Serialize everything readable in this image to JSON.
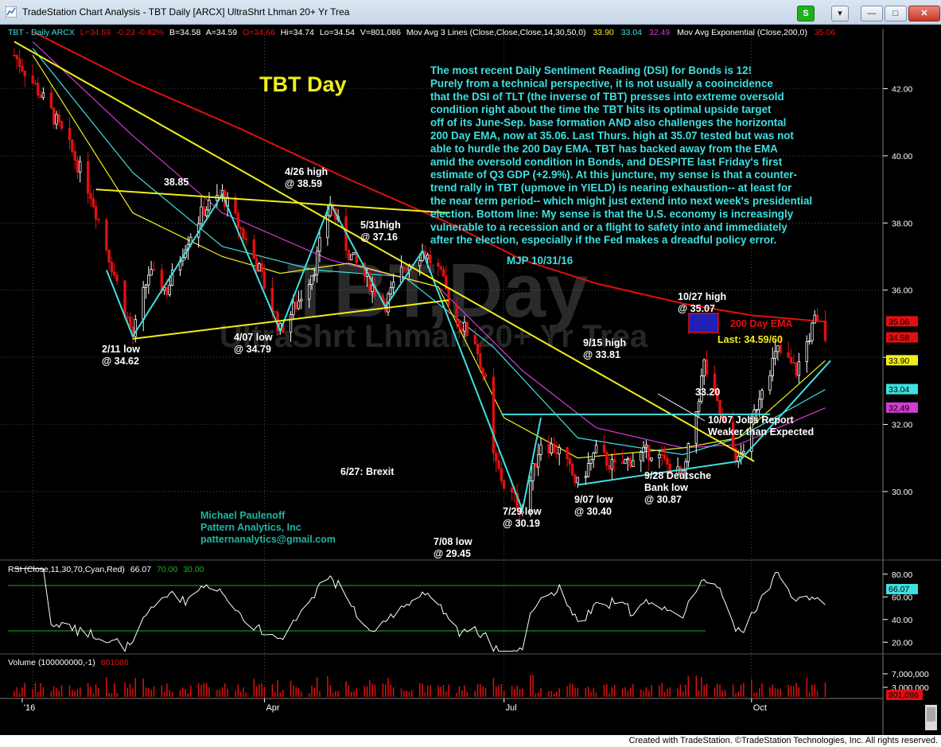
{
  "window": {
    "title": "TradeStation Chart Analysis - TBT Daily [ARCX] UltraShrt Lhman 20+ Yr Trea",
    "buttons": {
      "s_label": "S",
      "menu_label": "▾",
      "minimize": "—",
      "maximize": "□",
      "close": "✕"
    }
  },
  "status": {
    "credit": "Created with TradeStation. ©TradeStation Technologies, Inc. All rights reserved."
  },
  "colors": {
    "bg": "#000000",
    "cyan": "#3fe0e0",
    "yellow": "#f0ee1a",
    "red": "#e01010",
    "magenta": "#d23cd2",
    "white": "#ffffff",
    "up_bar": "#ffffff",
    "down_bar": "#e01010",
    "grid": "#7a7a7a"
  },
  "header": {
    "symbol": "TBT - Daily  ARCX",
    "last": "L=34.59",
    "change": "-0.23  -0.82%",
    "bid": "B=34.58",
    "ask": "A=34.59",
    "open": "O=34.66",
    "hi": "Hi=34.74",
    "lo": "Lo=34.54",
    "volume": "V=801,086",
    "mav_label": "Mov Avg 3 Lines (Close,Close,Close,14,30,50,0)",
    "mav_v1": "33.90",
    "mav_v2": "33.04",
    "mav_v3": "32.49",
    "ema_label": "Mov Avg Exponential (Close,200,0)",
    "ema_v": "35.06"
  },
  "watermark": {
    "line1": "TBT,Day",
    "line2": "UltraShrt Lhman 20+ Yr Trea"
  },
  "annotations": {
    "title": "TBT Day",
    "commentary": [
      "The most recent Daily Sentiment Reading (DSI) for Bonds is 12!",
      "Purely from a technical perspective, it is not usually a cooincidence",
      "that the DSI of TLT (the inverse of TBT) presses into extreme oversold",
      "condition right about the time the TBT hits its optimal upside target",
      "off of its June-Sep. base formation AND also challenges the horizontal",
      "200 Day EMA, now at 35.06. Last Thurs. high at 35.07 tested but was not",
      "able to hurdle the 200 Day EMA. TBT has backed away from the EMA",
      "amid the oversold condition in Bonds, and DESPITE last Friday's first",
      "estimate of Q3 GDP (+2.9%). At this juncture, my sense is that a counter-",
      "trend rally in TBT (upmove in YIELD) is nearing exhaustion-- at least for",
      "the near term period-- which might just extend into next week's presidential",
      "election. Bottom line: My sense is that the U.S. economy is increasingly",
      "vulnerable to a recession and or a flight to safety into and immediately",
      "after the election, especially if the Fed makes a dreadful policy error."
    ],
    "signature": "MJP 10/31/16",
    "labels": {
      "a3885": "38.85",
      "a426_1": "4/26 high",
      "a426_2": "@ 38.59",
      "a531_1": "5/31high",
      "a531_2": "@ 37.16",
      "a211_1": "2/11 low",
      "a211_2": "@ 34.62",
      "a407_1": "4/07 low",
      "a407_2": "@ 34.79",
      "a627": "6/27: Brexit",
      "a708_1": "7/08 low",
      "a708_2": "@ 29.45",
      "a729_1": "7/29 low",
      "a729_2": "@ 30.19",
      "a907_1": "9/07 low",
      "a907_2": "@ 30.40",
      "a915_1": "9/15 high",
      "a915_2": "@ 33.81",
      "a928_1": "9/28 Deutsche",
      "a928_2": "Bank low",
      "a928_3": "@ 30.87",
      "a1027_1": "10/27 high",
      "a1027_2": "@ 35.07",
      "a200ema": "200 Day EMA",
      "alast": "Last: 34.59/60",
      "a3320": "33.20",
      "a1007_1": "10/07 Jobs Report",
      "a1007_2": "Weaker than Expected"
    },
    "author": [
      "Michael Paulenoff",
      "Pattern Analytics, Inc",
      "patternanalytics@gmail.com"
    ]
  },
  "rsi": {
    "label": "RSI (Close,11,30,70,Cyan,Red)",
    "value": "66.07",
    "ob": "70.00",
    "os": "30.00",
    "current_tag": "66.07",
    "levels": [
      80,
      60,
      40,
      20
    ]
  },
  "volume": {
    "label": "Volume (100000000,-1)",
    "value": "801086",
    "ticks": [
      "7,000,000",
      "3,000,000"
    ],
    "current_tag": "801,086"
  },
  "price_axis": {
    "ticks": [
      "42.00",
      "40.00",
      "38.00",
      "36.00",
      "32.00",
      "30.00"
    ],
    "tags": [
      "35.06",
      "34.58",
      "33.90",
      "33.04",
      "32.49"
    ]
  },
  "time_axis": {
    "labels": [
      "'16",
      "Apr",
      "Jul",
      "Oct"
    ]
  },
  "chart_data": {
    "type": "candlestick",
    "title": "TBT Day",
    "symbol": "TBT",
    "x_range": [
      "2015-12-28",
      "2016-10-31"
    ],
    "ylim": [
      28.5,
      43.6
    ],
    "y_ticks": [
      30,
      32,
      34,
      36,
      38,
      40,
      42
    ],
    "x_labels": [
      "'16",
      "Apr",
      "Jul",
      "Oct"
    ],
    "close_path": [
      [
        "2015-12-28",
        43.0
      ],
      [
        "2016-01-04",
        42.2
      ],
      [
        "2016-01-11",
        41.3
      ],
      [
        "2016-01-19",
        40.1
      ],
      [
        "2016-01-26",
        38.9
      ],
      [
        "2016-02-02",
        37.0
      ],
      [
        "2016-02-11",
        34.62
      ],
      [
        "2016-02-17",
        36.5
      ],
      [
        "2016-02-24",
        36.0
      ],
      [
        "2016-03-02",
        37.4
      ],
      [
        "2016-03-09",
        38.4
      ],
      [
        "2016-03-16",
        38.85
      ],
      [
        "2016-03-23",
        37.8
      ],
      [
        "2016-03-30",
        36.6
      ],
      [
        "2016-04-07",
        34.79
      ],
      [
        "2016-04-14",
        35.7
      ],
      [
        "2016-04-20",
        36.7
      ],
      [
        "2016-04-26",
        38.59
      ],
      [
        "2016-05-03",
        37.1
      ],
      [
        "2016-05-10",
        36.3
      ],
      [
        "2016-05-17",
        35.6
      ],
      [
        "2016-05-24",
        36.7
      ],
      [
        "2016-05-31",
        37.16
      ],
      [
        "2016-06-06",
        36.6
      ],
      [
        "2016-06-13",
        35.1
      ],
      [
        "2016-06-20",
        34.5
      ],
      [
        "2016-06-24",
        33.2
      ],
      [
        "2016-06-27",
        31.0
      ],
      [
        "2016-07-01",
        30.2
      ],
      [
        "2016-07-08",
        29.45
      ],
      [
        "2016-07-15",
        31.5
      ],
      [
        "2016-07-22",
        31.2
      ],
      [
        "2016-07-29",
        30.19
      ],
      [
        "2016-08-05",
        31.2
      ],
      [
        "2016-08-12",
        30.7
      ],
      [
        "2016-08-19",
        31.0
      ],
      [
        "2016-08-26",
        31.2
      ],
      [
        "2016-09-07",
        30.4
      ],
      [
        "2016-09-12",
        32.4
      ],
      [
        "2016-09-15",
        33.81
      ],
      [
        "2016-09-21",
        32.3
      ],
      [
        "2016-09-28",
        30.87
      ],
      [
        "2016-10-03",
        32.0
      ],
      [
        "2016-10-07",
        33.2
      ],
      [
        "2016-10-13",
        34.2
      ],
      [
        "2016-10-20",
        33.6
      ],
      [
        "2016-10-27",
        35.07
      ],
      [
        "2016-10-31",
        34.59
      ]
    ],
    "key_levels": [
      {
        "date": "2016-02-11",
        "value": 34.62,
        "type": "low"
      },
      {
        "date": "2016-03-16",
        "value": 38.85,
        "type": "high"
      },
      {
        "date": "2016-04-07",
        "value": 34.79,
        "type": "low"
      },
      {
        "date": "2016-04-26",
        "value": 38.59,
        "type": "high"
      },
      {
        "date": "2016-05-31",
        "value": 37.16,
        "type": "high"
      },
      {
        "date": "2016-07-08",
        "value": 29.45,
        "type": "low"
      },
      {
        "date": "2016-07-29",
        "value": 30.19,
        "type": "low"
      },
      {
        "date": "2016-09-07",
        "value": 30.4,
        "type": "low"
      },
      {
        "date": "2016-09-15",
        "value": 33.81,
        "type": "high"
      },
      {
        "date": "2016-09-28",
        "value": 30.87,
        "type": "low"
      },
      {
        "date": "2016-10-27",
        "value": 35.07,
        "type": "high"
      }
    ],
    "series": [
      {
        "name": "Mov Avg Exponential (Close,200,0)",
        "color": "#e01010",
        "values": [
          [
            "2016-01-04",
            43.7
          ],
          [
            "2016-02-11",
            42.2
          ],
          [
            "2016-03-23",
            40.8
          ],
          [
            "2016-05-03",
            39.3
          ],
          [
            "2016-06-10",
            38.0
          ],
          [
            "2016-07-08",
            36.9
          ],
          [
            "2016-08-05",
            36.2
          ],
          [
            "2016-09-07",
            35.6
          ],
          [
            "2016-10-03",
            35.25
          ],
          [
            "2016-10-31",
            35.06
          ]
        ]
      },
      {
        "name": "MA 14",
        "color": "#f0ee1a",
        "values": [
          [
            "2016-01-04",
            43.0
          ],
          [
            "2016-02-11",
            38.3
          ],
          [
            "2016-03-16",
            37.0
          ],
          [
            "2016-04-07",
            36.5
          ],
          [
            "2016-05-03",
            36.8
          ],
          [
            "2016-06-06",
            36.1
          ],
          [
            "2016-07-01",
            32.2
          ],
          [
            "2016-07-29",
            31.0
          ],
          [
            "2016-09-07",
            31.3
          ],
          [
            "2016-09-28",
            31.6
          ],
          [
            "2016-10-31",
            33.9
          ]
        ]
      },
      {
        "name": "MA 30",
        "color": "#3fe0e0",
        "values": [
          [
            "2016-01-04",
            43.2
          ],
          [
            "2016-02-11",
            39.5
          ],
          [
            "2016-03-16",
            37.3
          ],
          [
            "2016-04-20",
            36.6
          ],
          [
            "2016-05-24",
            36.4
          ],
          [
            "2016-06-27",
            34.3
          ],
          [
            "2016-07-29",
            31.6
          ],
          [
            "2016-09-07",
            31.1
          ],
          [
            "2016-09-28",
            31.6
          ],
          [
            "2016-10-31",
            33.04
          ]
        ]
      },
      {
        "name": "MA 50",
        "color": "#d23cd2",
        "values": [
          [
            "2016-01-04",
            43.4
          ],
          [
            "2016-02-11",
            40.6
          ],
          [
            "2016-03-16",
            38.3
          ],
          [
            "2016-04-26",
            36.9
          ],
          [
            "2016-06-06",
            36.1
          ],
          [
            "2016-07-08",
            33.6
          ],
          [
            "2016-08-05",
            31.9
          ],
          [
            "2016-09-07",
            31.3
          ],
          [
            "2016-09-28",
            31.4
          ],
          [
            "2016-10-31",
            32.49
          ]
        ]
      }
    ],
    "trendlines": [
      {
        "color": "yellow",
        "from": [
          "2015-12-28",
          43.4
        ],
        "to": [
          "2016-10-04",
          30.9
        ]
      },
      {
        "color": "yellow",
        "from": [
          "2016-01-28",
          39.0
        ],
        "to": [
          "2016-06-10",
          38.3
        ]
      },
      {
        "color": "yellow",
        "from": [
          "2016-02-11",
          34.55
        ],
        "to": [
          "2016-06-10",
          35.7
        ]
      },
      {
        "color": "cyan",
        "from": [
          "2016-06-30",
          32.3
        ],
        "to": [
          "2016-10-10",
          32.3
        ]
      },
      {
        "color": "cyan",
        "from": [
          "2016-07-29",
          30.2
        ],
        "to": [
          "2016-09-28",
          30.9
        ]
      },
      {
        "color": "cyan",
        "from": [
          "2016-09-28",
          30.87
        ],
        "to": [
          "2016-11-02",
          33.9
        ]
      }
    ],
    "rsi": {
      "name": "RSI (Close,11,30,70,Cyan,Red)",
      "ylim": [
        10,
        90
      ],
      "overbought": 70,
      "oversold": 30,
      "last": 66.07
    },
    "volume": {
      "name": "Volume (100000000,-1)",
      "last": 801086,
      "y_ticks": [
        7000000,
        3000000
      ]
    }
  }
}
